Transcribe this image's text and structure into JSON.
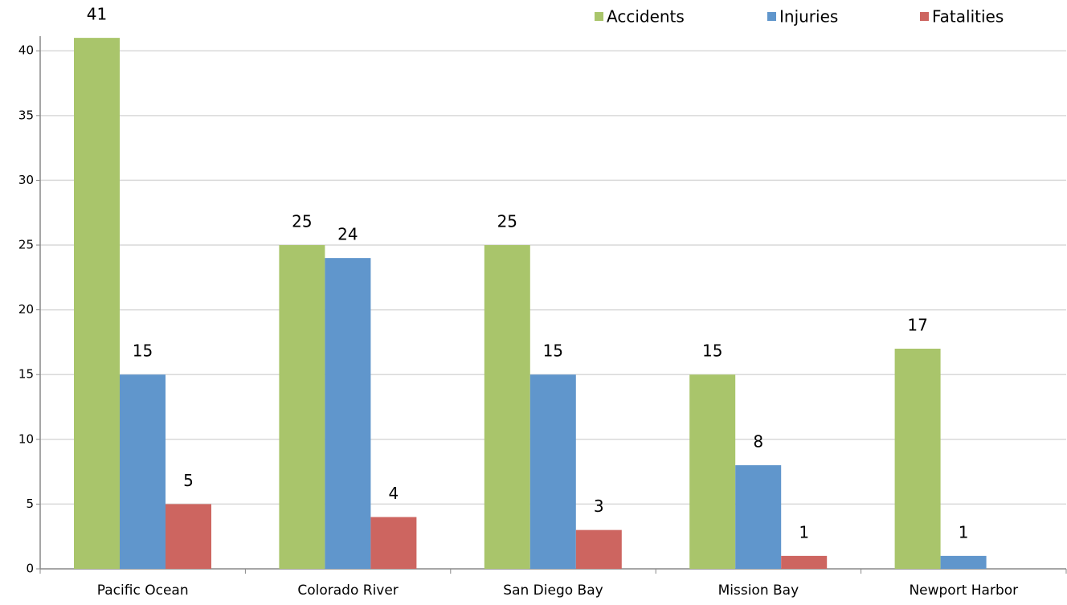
{
  "chart_data": {
    "type": "bar",
    "categories": [
      "Pacific Ocean",
      "Colorado River",
      "San Diego Bay",
      "Mission Bay",
      "Newport Harbor"
    ],
    "series": [
      {
        "name": "Accidents",
        "color": "#a9c56b",
        "values": [
          41,
          25,
          25,
          15,
          17
        ]
      },
      {
        "name": "Injuries",
        "color": "#6096cc",
        "values": [
          15,
          24,
          15,
          8,
          1
        ]
      },
      {
        "name": "Fatalities",
        "color": "#cd6560",
        "values": [
          5,
          4,
          3,
          1,
          null
        ]
      }
    ],
    "ylim": [
      0,
      42
    ],
    "yticks": [
      0,
      5,
      10,
      15,
      20,
      25,
      30,
      35,
      40
    ],
    "grid": true,
    "legend": "top"
  }
}
